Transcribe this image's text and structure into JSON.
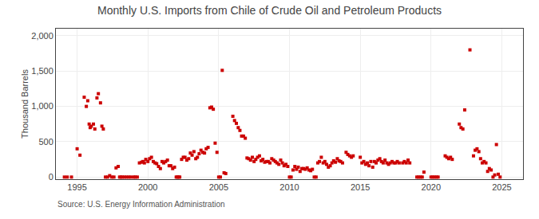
{
  "chart_data": {
    "type": "scatter",
    "title": "Monthly U.S. Imports from Chile of Crude Oil and Petroleum Products",
    "ylabel": "Thousand Barrels",
    "annotations": [
      "Source: U.S. Energy Information Administration"
    ],
    "color": "#cc0000",
    "marker": "square",
    "grid": true,
    "xlim": [
      1993.5,
      2026.5
    ],
    "ylim": [
      -30,
      2100
    ],
    "xticks": [
      1995,
      2000,
      2005,
      2010,
      2015,
      2020,
      2025
    ],
    "yticks": [
      0,
      500,
      {
        "value": 1000,
        "label": "1,000"
      },
      {
        "value": 1500,
        "label": "1,500"
      },
      {
        "value": 2000,
        "label": "2,000"
      }
    ],
    "x": [
      1994.1,
      1994.3,
      1994.6,
      1995.0,
      1995.2,
      1995.5,
      1995.65,
      1995.75,
      1995.85,
      1995.92,
      1996.0,
      1996.15,
      1996.25,
      1996.4,
      1996.5,
      1996.65,
      1996.75,
      1996.85,
      1997.0,
      1997.15,
      1997.3,
      1997.45,
      1997.6,
      1997.75,
      1997.9,
      1998.0,
      1998.1,
      1998.2,
      1998.35,
      1998.5,
      1998.65,
      1998.8,
      1999.0,
      1999.1,
      1999.25,
      1999.4,
      1999.55,
      1999.65,
      1999.75,
      1999.85,
      2000.0,
      2000.12,
      2000.25,
      2000.38,
      2000.5,
      2000.62,
      2000.75,
      2000.88,
      2001.0,
      2001.12,
      2001.25,
      2001.38,
      2001.5,
      2001.62,
      2001.75,
      2001.88,
      2002.0,
      2002.08,
      2002.17,
      2002.25,
      2002.38,
      2002.5,
      2002.62,
      2002.75,
      2002.88,
      2003.0,
      2003.12,
      2003.25,
      2003.38,
      2003.5,
      2003.62,
      2003.75,
      2003.88,
      2004.0,
      2004.12,
      2004.25,
      2004.38,
      2004.5,
      2004.62,
      2004.75,
      2004.88,
      2005.0,
      2005.12,
      2005.25,
      2005.38,
      2005.5,
      2006.0,
      2006.12,
      2006.25,
      2006.38,
      2006.5,
      2006.62,
      2006.75,
      2006.88,
      2007.0,
      2007.12,
      2007.25,
      2007.38,
      2007.5,
      2007.62,
      2007.75,
      2007.88,
      2008.0,
      2008.12,
      2008.25,
      2008.38,
      2008.5,
      2008.62,
      2008.75,
      2008.88,
      2009.0,
      2009.12,
      2009.25,
      2009.38,
      2009.5,
      2009.62,
      2009.75,
      2009.88,
      2010.0,
      2010.12,
      2010.25,
      2010.38,
      2010.5,
      2010.62,
      2010.75,
      2010.88,
      2011.0,
      2011.12,
      2011.25,
      2011.38,
      2011.5,
      2011.62,
      2011.75,
      2011.88,
      2012.0,
      2012.12,
      2012.25,
      2012.38,
      2012.5,
      2012.62,
      2012.75,
      2012.88,
      2013.0,
      2013.12,
      2013.25,
      2013.38,
      2013.5,
      2013.62,
      2013.75,
      2014.0,
      2014.12,
      2014.25,
      2014.38,
      2014.5,
      2015.0,
      2015.12,
      2015.25,
      2015.38,
      2015.5,
      2015.62,
      2015.75,
      2015.88,
      2016.0,
      2016.12,
      2016.25,
      2016.38,
      2016.5,
      2016.62,
      2016.75,
      2016.88,
      2017.0,
      2017.12,
      2017.25,
      2017.38,
      2017.5,
      2017.62,
      2017.75,
      2018.0,
      2018.12,
      2018.25,
      2018.38,
      2018.5,
      2019.0,
      2019.12,
      2019.25,
      2019.38,
      2019.5,
      2020.0,
      2020.12,
      2020.25,
      2020.38,
      2020.5,
      2021.0,
      2021.12,
      2021.25,
      2021.38,
      2021.5,
      2022.0,
      2022.12,
      2022.25,
      2022.38,
      2022.75,
      2023.0,
      2023.12,
      2023.25,
      2023.38,
      2023.5,
      2023.62,
      2023.75,
      2023.88,
      2024.0,
      2024.12,
      2024.25,
      2024.38,
      2024.5,
      2024.62,
      2024.75,
      2024.88
    ],
    "values": [
      0,
      0,
      0,
      400,
      310,
      1130,
      1000,
      1080,
      750,
      700,
      720,
      750,
      680,
      1120,
      1180,
      1050,
      720,
      680,
      0,
      0,
      20,
      0,
      0,
      130,
      150,
      0,
      0,
      0,
      0,
      0,
      0,
      0,
      0,
      0,
      0,
      200,
      210,
      220,
      200,
      250,
      220,
      260,
      280,
      220,
      200,
      190,
      150,
      120,
      220,
      200,
      220,
      240,
      160,
      160,
      120,
      140,
      0,
      0,
      0,
      0,
      250,
      280,
      280,
      240,
      260,
      340,
      310,
      360,
      260,
      280,
      330,
      380,
      350,
      340,
      400,
      420,
      980,
      990,
      960,
      480,
      350,
      0,
      0,
      1510,
      60,
      50,
      860,
      800,
      760,
      700,
      660,
      580,
      580,
      550,
      270,
      260,
      240,
      280,
      220,
      250,
      280,
      300,
      230,
      250,
      210,
      220,
      220,
      200,
      260,
      240,
      220,
      200,
      180,
      240,
      200,
      160,
      180,
      150,
      0,
      0,
      100,
      150,
      110,
      140,
      80,
      120,
      120,
      110,
      130,
      100,
      90,
      110,
      0,
      0,
      200,
      220,
      280,
      200,
      220,
      180,
      140,
      160,
      200,
      230,
      210,
      260,
      230,
      220,
      200,
      350,
      320,
      300,
      280,
      300,
      280,
      200,
      220,
      180,
      200,
      160,
      220,
      140,
      220,
      200,
      240,
      260,
      220,
      200,
      240,
      200,
      180,
      200,
      220,
      200,
      200,
      220,
      200,
      200,
      220,
      200,
      240,
      200,
      0,
      0,
      0,
      0,
      70,
      0,
      0,
      0,
      0,
      0,
      300,
      280,
      260,
      280,
      250,
      750,
      700,
      680,
      950,
      1800,
      300,
      380,
      400,
      360,
      260,
      200,
      220,
      200,
      80,
      120,
      100,
      0,
      30,
      460,
      40,
      0
    ]
  }
}
